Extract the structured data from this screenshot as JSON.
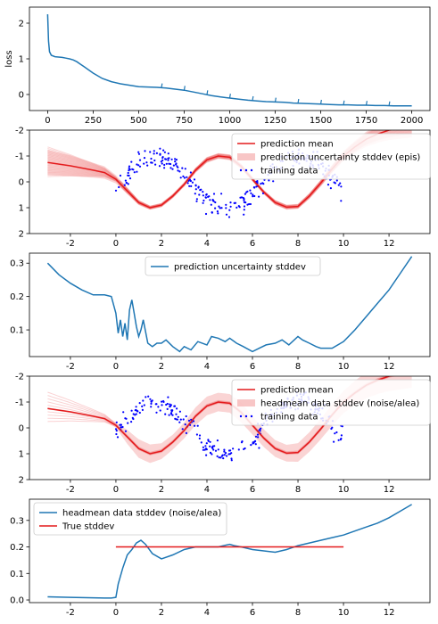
{
  "colors": {
    "blue": "#1f77b4",
    "red": "#e41a1c",
    "pink": "#f4a0a0",
    "dots": "#0000ff"
  },
  "chart_data": [
    {
      "type": "line",
      "ylabel": "loss",
      "xlim": [
        -100,
        2100
      ],
      "ylim": [
        -0.45,
        2.45
      ],
      "xticks": [
        "0",
        "250",
        "500",
        "750",
        "1000",
        "1250",
        "1500",
        "1750",
        "2000"
      ],
      "yticks": [
        "0",
        "1",
        "2"
      ],
      "series": [
        {
          "x": [
            0,
            5,
            10,
            20,
            40,
            60,
            80,
            100,
            120,
            140,
            160,
            180,
            200,
            250,
            300,
            350,
            400,
            450,
            500,
            550,
            600,
            650,
            700,
            750,
            800,
            850,
            900,
            950,
            1000,
            1050,
            1100,
            1150,
            1200,
            1250,
            1300,
            1350,
            1400,
            1450,
            1500,
            1550,
            1600,
            1650,
            1700,
            1750,
            1800,
            1850,
            1900,
            1950,
            2000
          ],
          "y": [
            2.25,
            1.5,
            1.2,
            1.1,
            1.06,
            1.05,
            1.04,
            1.02,
            1.0,
            0.97,
            0.92,
            0.85,
            0.78,
            0.6,
            0.45,
            0.36,
            0.3,
            0.26,
            0.22,
            0.21,
            0.2,
            0.18,
            0.15,
            0.12,
            0.07,
            0.02,
            -0.03,
            -0.07,
            -0.1,
            -0.13,
            -0.16,
            -0.18,
            -0.2,
            -0.21,
            -0.22,
            -0.24,
            -0.25,
            -0.26,
            -0.27,
            -0.28,
            -0.29,
            -0.29,
            -0.3,
            -0.3,
            -0.31,
            -0.31,
            -0.32,
            -0.32,
            -0.32
          ]
        }
      ]
    },
    {
      "type": "line",
      "yinverted": true,
      "xlim": [
        -3.8,
        13.8
      ],
      "ylim": [
        2,
        -2
      ],
      "xticks": [
        "-2",
        "0",
        "2",
        "4",
        "6",
        "8",
        "10",
        "12"
      ],
      "yticks": [
        "-2",
        "-1",
        "0",
        "1",
        "2"
      ],
      "legend": [
        "prediction mean",
        "prediction uncertainty stddev (epis)",
        "training data"
      ],
      "series": [
        {
          "name": "prediction mean",
          "x": [
            -3,
            -2,
            -1,
            -0.5,
            0,
            0.5,
            1,
            1.5,
            2,
            2.5,
            3,
            3.5,
            4,
            4.5,
            5,
            5.5,
            6,
            6.5,
            7,
            7.5,
            8,
            8.5,
            9,
            9.5,
            10,
            10.5,
            11,
            11.5,
            12,
            12.5,
            13
          ],
          "y": [
            -0.75,
            -0.62,
            -0.45,
            -0.36,
            -0.1,
            0.35,
            0.8,
            1.0,
            0.9,
            0.55,
            0.1,
            -0.45,
            -0.85,
            -1.0,
            -0.95,
            -0.6,
            -0.1,
            0.4,
            0.8,
            0.98,
            0.95,
            0.55,
            0.05,
            -0.5,
            -1.0,
            -1.35,
            -1.65,
            -1.85,
            -2.0,
            -2.1,
            -2.2
          ],
          "band": [
            0.3,
            0.25,
            0.18,
            0.15,
            0.1,
            0.08,
            0.06,
            0.05,
            0.05,
            0.05,
            0.05,
            0.06,
            0.07,
            0.07,
            0.07,
            0.06,
            0.05,
            0.05,
            0.06,
            0.06,
            0.06,
            0.07,
            0.08,
            0.1,
            0.12,
            0.15,
            0.18,
            0.21,
            0.24,
            0.27,
            0.3
          ]
        }
      ]
    },
    {
      "type": "line",
      "xlim": [
        -3.8,
        13.8
      ],
      "ylim": [
        0.02,
        0.33
      ],
      "xticks": [
        "-2",
        "0",
        "2",
        "4",
        "6",
        "8",
        "10",
        "12"
      ],
      "yticks": [
        "0.1",
        "0.2",
        "0.3"
      ],
      "legend": [
        "prediction uncertainty stddev"
      ],
      "series": [
        {
          "name": "prediction uncertainty stddev",
          "x": [
            -3,
            -2.5,
            -2,
            -1.5,
            -1,
            -0.5,
            -0.2,
            0,
            0.1,
            0.2,
            0.3,
            0.4,
            0.5,
            0.6,
            0.7,
            0.8,
            0.9,
            1,
            1.1,
            1.2,
            1.4,
            1.6,
            1.8,
            2,
            2.2,
            2.5,
            2.8,
            3,
            3.3,
            3.6,
            4,
            4.2,
            4.5,
            4.8,
            5,
            5.3,
            5.6,
            6,
            6.3,
            6.6,
            7,
            7.3,
            7.6,
            8,
            8.2,
            8.5,
            8.8,
            9,
            9.5,
            10,
            10.5,
            11,
            11.5,
            12,
            12.5,
            13
          ],
          "y": [
            0.3,
            0.265,
            0.24,
            0.22,
            0.205,
            0.205,
            0.2,
            0.15,
            0.09,
            0.13,
            0.08,
            0.12,
            0.07,
            0.16,
            0.19,
            0.15,
            0.11,
            0.08,
            0.1,
            0.13,
            0.06,
            0.05,
            0.06,
            0.06,
            0.07,
            0.05,
            0.035,
            0.05,
            0.04,
            0.065,
            0.055,
            0.08,
            0.075,
            0.065,
            0.075,
            0.06,
            0.05,
            0.035,
            0.045,
            0.055,
            0.06,
            0.07,
            0.055,
            0.08,
            0.07,
            0.06,
            0.05,
            0.045,
            0.045,
            0.065,
            0.1,
            0.14,
            0.18,
            0.22,
            0.27,
            0.32
          ]
        }
      ]
    },
    {
      "type": "line",
      "yinverted": true,
      "xlim": [
        -3.8,
        13.8
      ],
      "ylim": [
        2,
        -2
      ],
      "xticks": [
        "-2",
        "0",
        "2",
        "4",
        "6",
        "8",
        "10",
        "12"
      ],
      "yticks": [
        "-2",
        "-1",
        "0",
        "1",
        "2"
      ],
      "legend": [
        "prediction mean",
        "headmean data stddev (noise/alea)",
        "training data"
      ],
      "series": [
        {
          "name": "prediction mean",
          "x": [
            -3,
            -2,
            -1,
            -0.5,
            0,
            0.5,
            1,
            1.5,
            2,
            2.5,
            3,
            3.5,
            4,
            4.5,
            5,
            5.5,
            6,
            6.5,
            7,
            7.5,
            8,
            8.5,
            9,
            9.5,
            10,
            10.5,
            11,
            11.5,
            12,
            12.5,
            13
          ],
          "y": [
            -0.75,
            -0.62,
            -0.45,
            -0.36,
            -0.1,
            0.35,
            0.8,
            1.0,
            0.9,
            0.55,
            0.1,
            -0.45,
            -0.85,
            -1.0,
            -0.95,
            -0.6,
            -0.1,
            0.4,
            0.8,
            0.98,
            0.95,
            0.55,
            0.05,
            -0.5,
            -1.0,
            -1.35,
            -1.65,
            -1.85,
            -2.0,
            -2.1,
            -2.2
          ],
          "band": [
            0.02,
            0.02,
            0.02,
            0.02,
            0.05,
            0.15,
            0.2,
            0.2,
            0.17,
            0.16,
            0.17,
            0.19,
            0.2,
            0.2,
            0.2,
            0.21,
            0.2,
            0.19,
            0.18,
            0.18,
            0.2,
            0.21,
            0.22,
            0.23,
            0.24,
            0.26,
            0.28,
            0.3,
            0.32,
            0.34,
            0.36
          ]
        }
      ]
    },
    {
      "type": "line",
      "xlim": [
        -3.8,
        13.8
      ],
      "ylim": [
        -0.01,
        0.38
      ],
      "xticks": [
        "-2",
        "0",
        "2",
        "4",
        "6",
        "8",
        "10",
        "12"
      ],
      "yticks": [
        "0.0",
        "0.1",
        "0.2",
        "0.3"
      ],
      "legend": [
        "headmean data stddev (noise/alea)",
        "True stddev"
      ],
      "series": [
        {
          "name": "headmean data stddev (noise/alea)",
          "x": [
            -3,
            -2,
            -1,
            -0.5,
            -0.2,
            0,
            0.1,
            0.3,
            0.5,
            0.7,
            0.9,
            1.1,
            1.3,
            1.6,
            2,
            2.5,
            3,
            3.5,
            4,
            4.5,
            5,
            5.2,
            5.5,
            6,
            6.5,
            7,
            7.5,
            8,
            8.5,
            9,
            9.5,
            10,
            10.5,
            11,
            11.5,
            12,
            12.5,
            13
          ],
          "y": [
            0.012,
            0.01,
            0.008,
            0.007,
            0.007,
            0.01,
            0.06,
            0.12,
            0.17,
            0.19,
            0.215,
            0.225,
            0.21,
            0.175,
            0.155,
            0.17,
            0.19,
            0.2,
            0.2,
            0.2,
            0.21,
            0.205,
            0.2,
            0.19,
            0.185,
            0.18,
            0.19,
            0.205,
            0.215,
            0.225,
            0.235,
            0.245,
            0.26,
            0.275,
            0.29,
            0.31,
            0.335,
            0.36
          ]
        },
        {
          "name": "True stddev",
          "x": [
            0,
            10
          ],
          "y": [
            0.2,
            0.2
          ]
        }
      ]
    }
  ]
}
